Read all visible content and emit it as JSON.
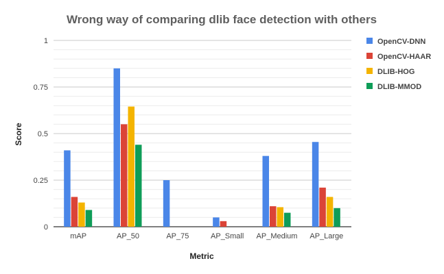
{
  "chart_data": {
    "type": "bar",
    "title": "Wrong way of comparing dlib face detection with others",
    "xlabel": "Metric",
    "ylabel": "Score",
    "ylim": [
      0,
      1
    ],
    "yticks": [
      "0",
      "0.25",
      "0.5",
      "0.75",
      "1"
    ],
    "ytick_values": [
      0,
      0.25,
      0.5,
      0.75,
      1
    ],
    "grid": true,
    "legend_position": "right",
    "categories": [
      "mAP",
      "AP_50",
      "AP_75",
      "AP_Small",
      "AP_Medium",
      "AP_Large"
    ],
    "series": [
      {
        "name": "OpenCV-DNN",
        "color": "#4a86e8",
        "values": [
          0.41,
          0.85,
          0.25,
          0.05,
          0.38,
          0.455
        ]
      },
      {
        "name": "OpenCV-HAAR",
        "color": "#db4437",
        "values": [
          0.16,
          0.55,
          0.0,
          0.03,
          0.11,
          0.21
        ]
      },
      {
        "name": "DLIB-HOG",
        "color": "#f4b400",
        "values": [
          0.13,
          0.645,
          0.0,
          0.0,
          0.105,
          0.16
        ]
      },
      {
        "name": "DLIB-MMOD",
        "color": "#0f9d58",
        "values": [
          0.09,
          0.44,
          0.0,
          0.0,
          0.075,
          0.1
        ]
      }
    ]
  }
}
